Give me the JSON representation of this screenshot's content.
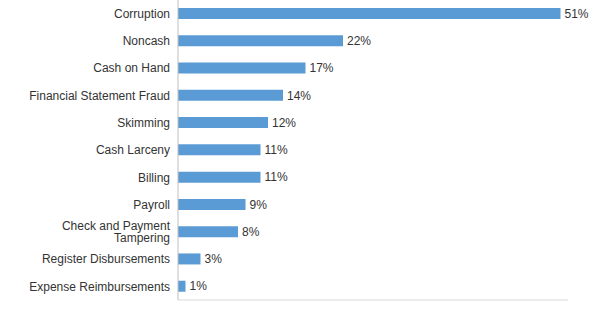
{
  "chart_data": {
    "type": "bar",
    "orientation": "horizontal",
    "categories": [
      "Corruption",
      "Noncash",
      "Cash on Hand",
      "Financial Statement Fraud",
      "Skimming",
      "Cash Larceny",
      "Billing",
      "Payroll",
      "Check and Payment Tampering",
      "Register Disbursements",
      "Expense Reimbursements"
    ],
    "values": [
      51,
      22,
      17,
      14,
      12,
      11,
      11,
      9,
      8,
      3,
      1
    ],
    "value_labels": [
      "51%",
      "22%",
      "17%",
      "14%",
      "12%",
      "11%",
      "11%",
      "9%",
      "8%",
      "3%",
      "1%"
    ],
    "color": "#5b9bd5",
    "xlim": [
      0,
      52
    ],
    "data_labels": true,
    "tick_labels": "y",
    "grid": false
  }
}
